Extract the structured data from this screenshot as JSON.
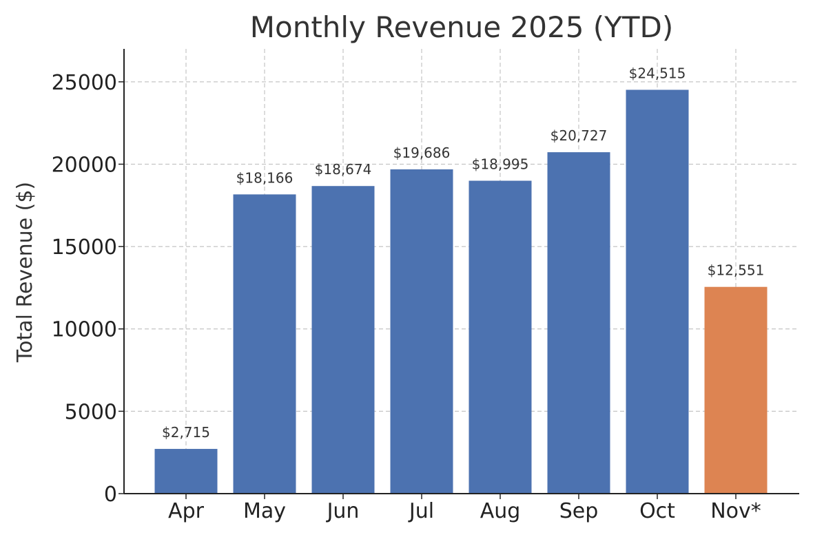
{
  "chart_data": {
    "type": "bar",
    "title": "Monthly Revenue 2025 (YTD)",
    "xlabel": "",
    "ylabel": "Total Revenue ($)",
    "categories": [
      "Apr",
      "May",
      "Jun",
      "Jul",
      "Aug",
      "Sep",
      "Oct",
      "Nov*"
    ],
    "values": [
      2715,
      18166,
      18674,
      19686,
      18995,
      20727,
      24515,
      12551
    ],
    "value_labels": [
      "$2,715",
      "$18,166",
      "$18,674",
      "$19,686",
      "$18,995",
      "$20,727",
      "$24,515",
      "$12,551"
    ],
    "bar_colors": [
      "#4c72b0",
      "#4c72b0",
      "#4c72b0",
      "#4c72b0",
      "#4c72b0",
      "#4c72b0",
      "#4c72b0",
      "#dd8452"
    ],
    "ylim": [
      0,
      27000
    ],
    "yticks": [
      0,
      5000,
      10000,
      15000,
      20000,
      25000
    ],
    "ytick_labels": [
      "0",
      "5000",
      "10000",
      "15000",
      "20000",
      "25000"
    ],
    "grid": true,
    "legend": null
  }
}
